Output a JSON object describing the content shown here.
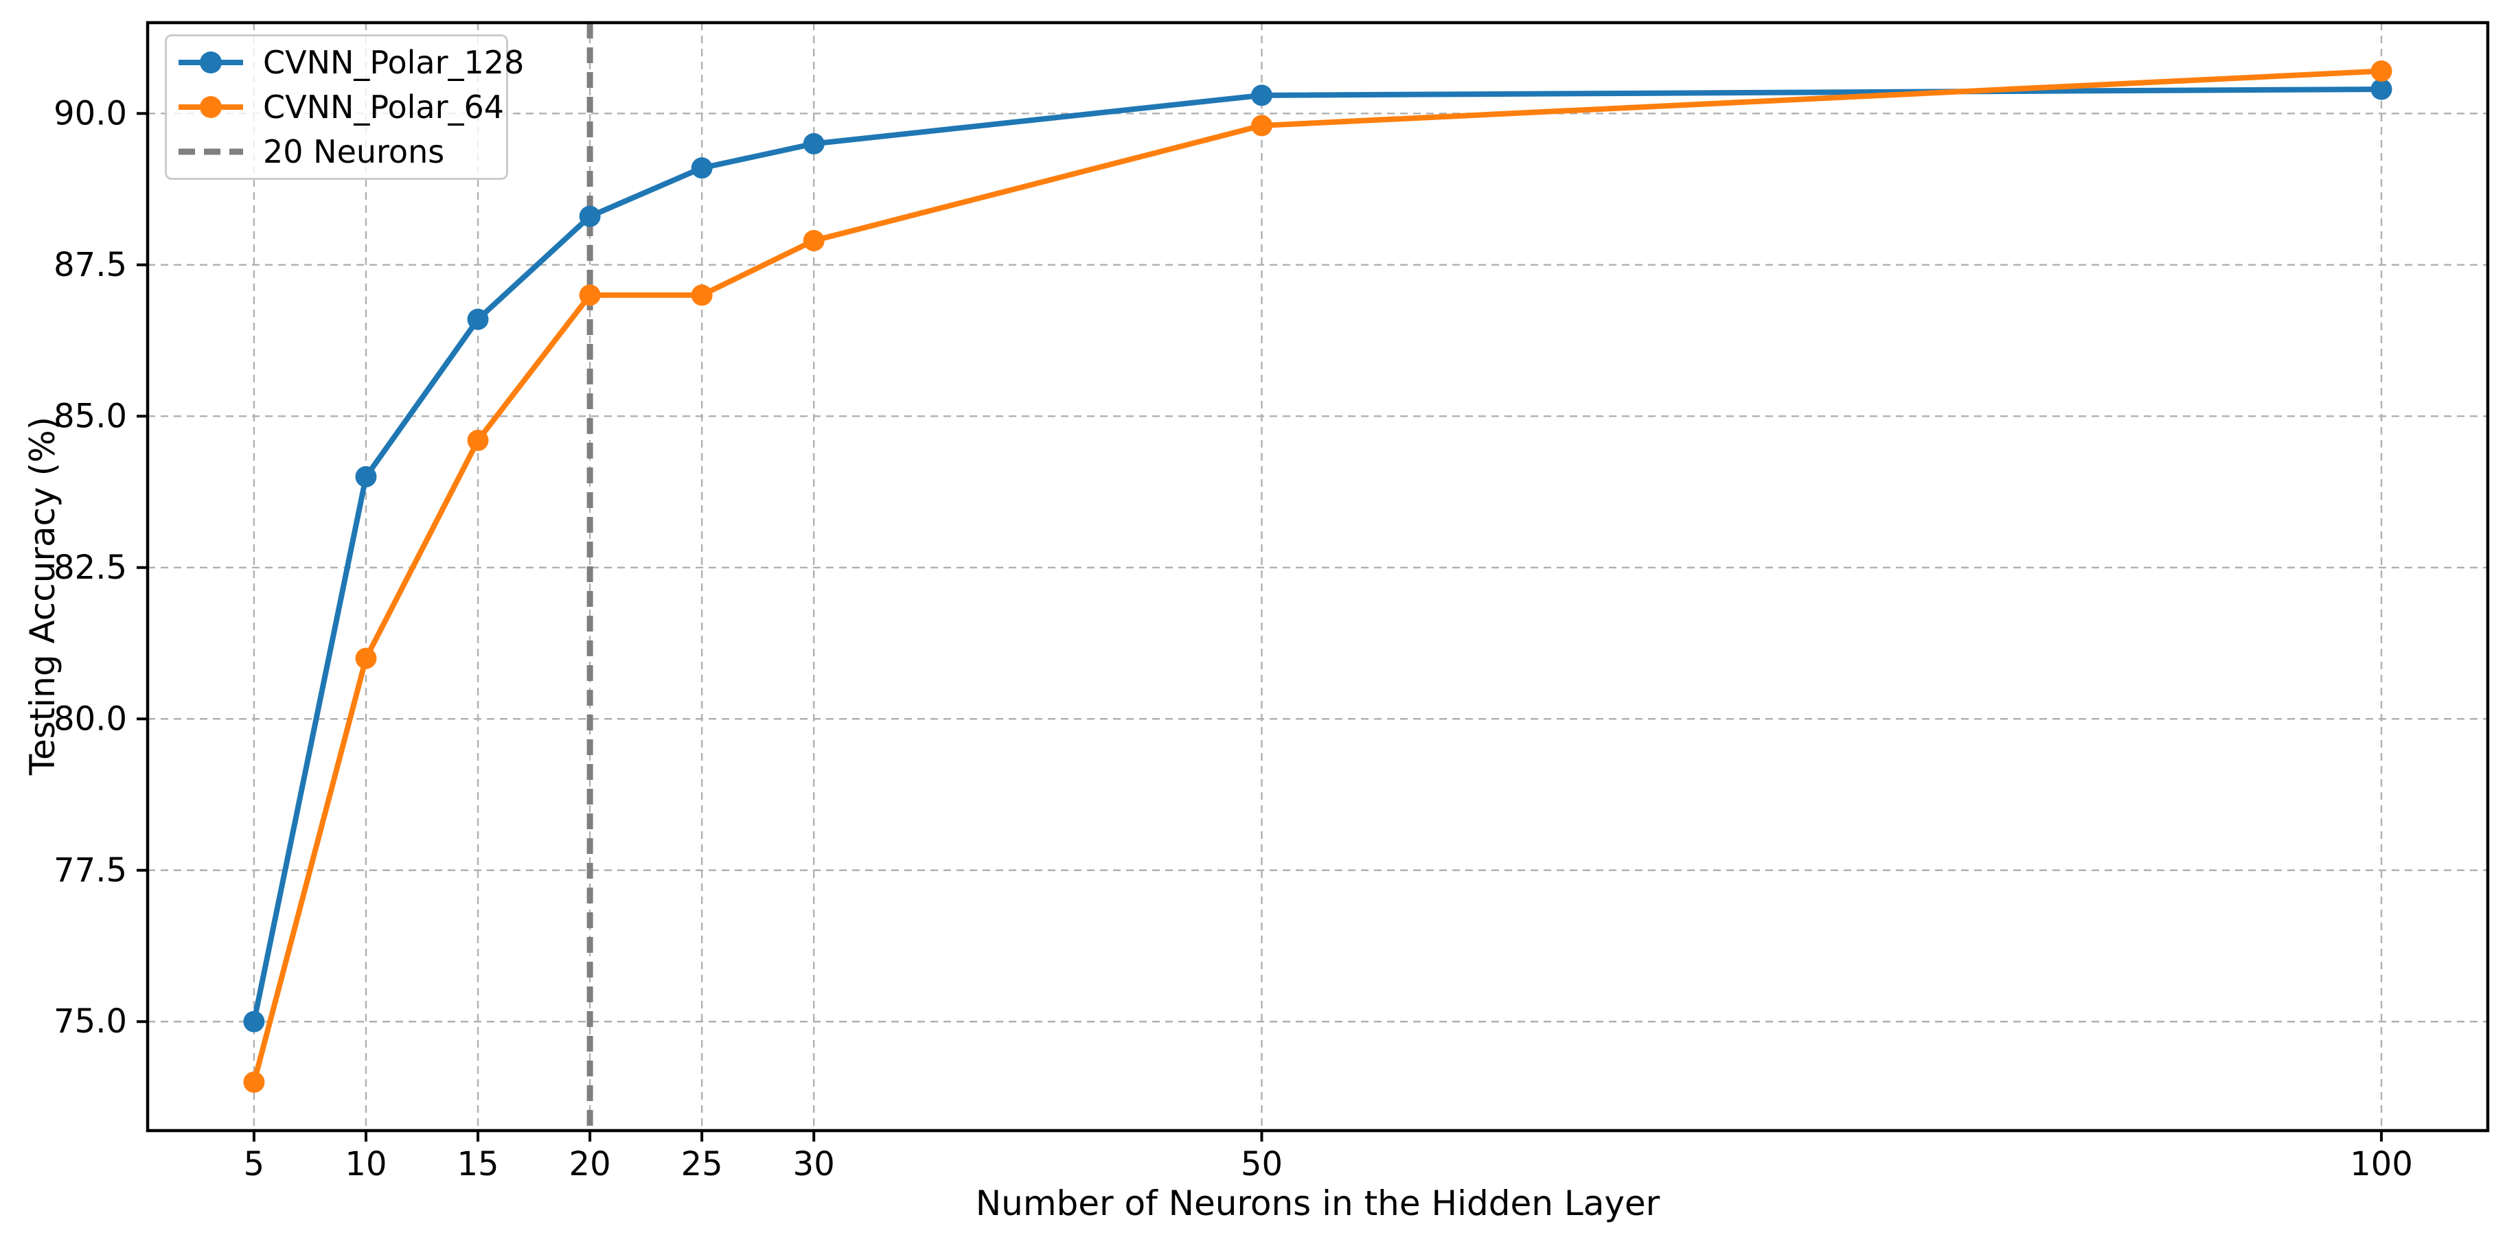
{
  "chart_data": {
    "type": "line",
    "title": "",
    "xlabel": "Number of Neurons in the Hidden Layer",
    "ylabel": "Testing Accuracy (%)",
    "x": [
      5,
      10,
      15,
      20,
      25,
      30,
      50,
      100
    ],
    "series": [
      {
        "name": "CVNN_Polar_128",
        "color": "#1f77b4",
        "marker": "circle",
        "values": [
          75.0,
          84.0,
          86.6,
          88.3,
          89.1,
          89.5,
          90.3,
          90.4
        ]
      },
      {
        "name": "CVNN_Polar_64",
        "color": "#ff7f0e",
        "marker": "circle",
        "values": [
          74.0,
          81.0,
          84.6,
          87.0,
          87.0,
          87.9,
          89.8,
          90.7
        ]
      }
    ],
    "vline": {
      "x": 20,
      "label": "20 Neurons",
      "color": "#7f7f7f",
      "style": "dashed"
    },
    "xlim": [
      0.25,
      104.75
    ],
    "ylim": [
      73.2,
      91.5
    ],
    "xticks": [
      5,
      10,
      15,
      20,
      25,
      30,
      50,
      100
    ],
    "xtick_labels": [
      "5",
      "10",
      "15",
      "20",
      "25",
      "30",
      "50",
      "100"
    ],
    "yticks": [
      75.0,
      77.5,
      80.0,
      82.5,
      85.0,
      87.5,
      90.0
    ],
    "ytick_labels": [
      "75.0",
      "77.5",
      "80.0",
      "82.5",
      "85.0",
      "87.5",
      "90.0"
    ],
    "grid": true,
    "grid_style": "dashed",
    "grid_color": "#b0b0b0",
    "legend_position": "upper left",
    "legend": {
      "items": [
        {
          "label": "CVNN_Polar_128",
          "swatch": "line-marker",
          "color": "#1f77b4"
        },
        {
          "label": "CVNN_Polar_64",
          "swatch": "line-marker",
          "color": "#ff7f0e"
        },
        {
          "label": "20 Neurons",
          "swatch": "dashed-line",
          "color": "#7f7f7f"
        }
      ]
    },
    "colors": {
      "background": "#ffffff",
      "axes": "#000000",
      "series_blue": "#1f77b4",
      "series_orange": "#ff7f0e",
      "vline_gray": "#7f7f7f"
    }
  }
}
